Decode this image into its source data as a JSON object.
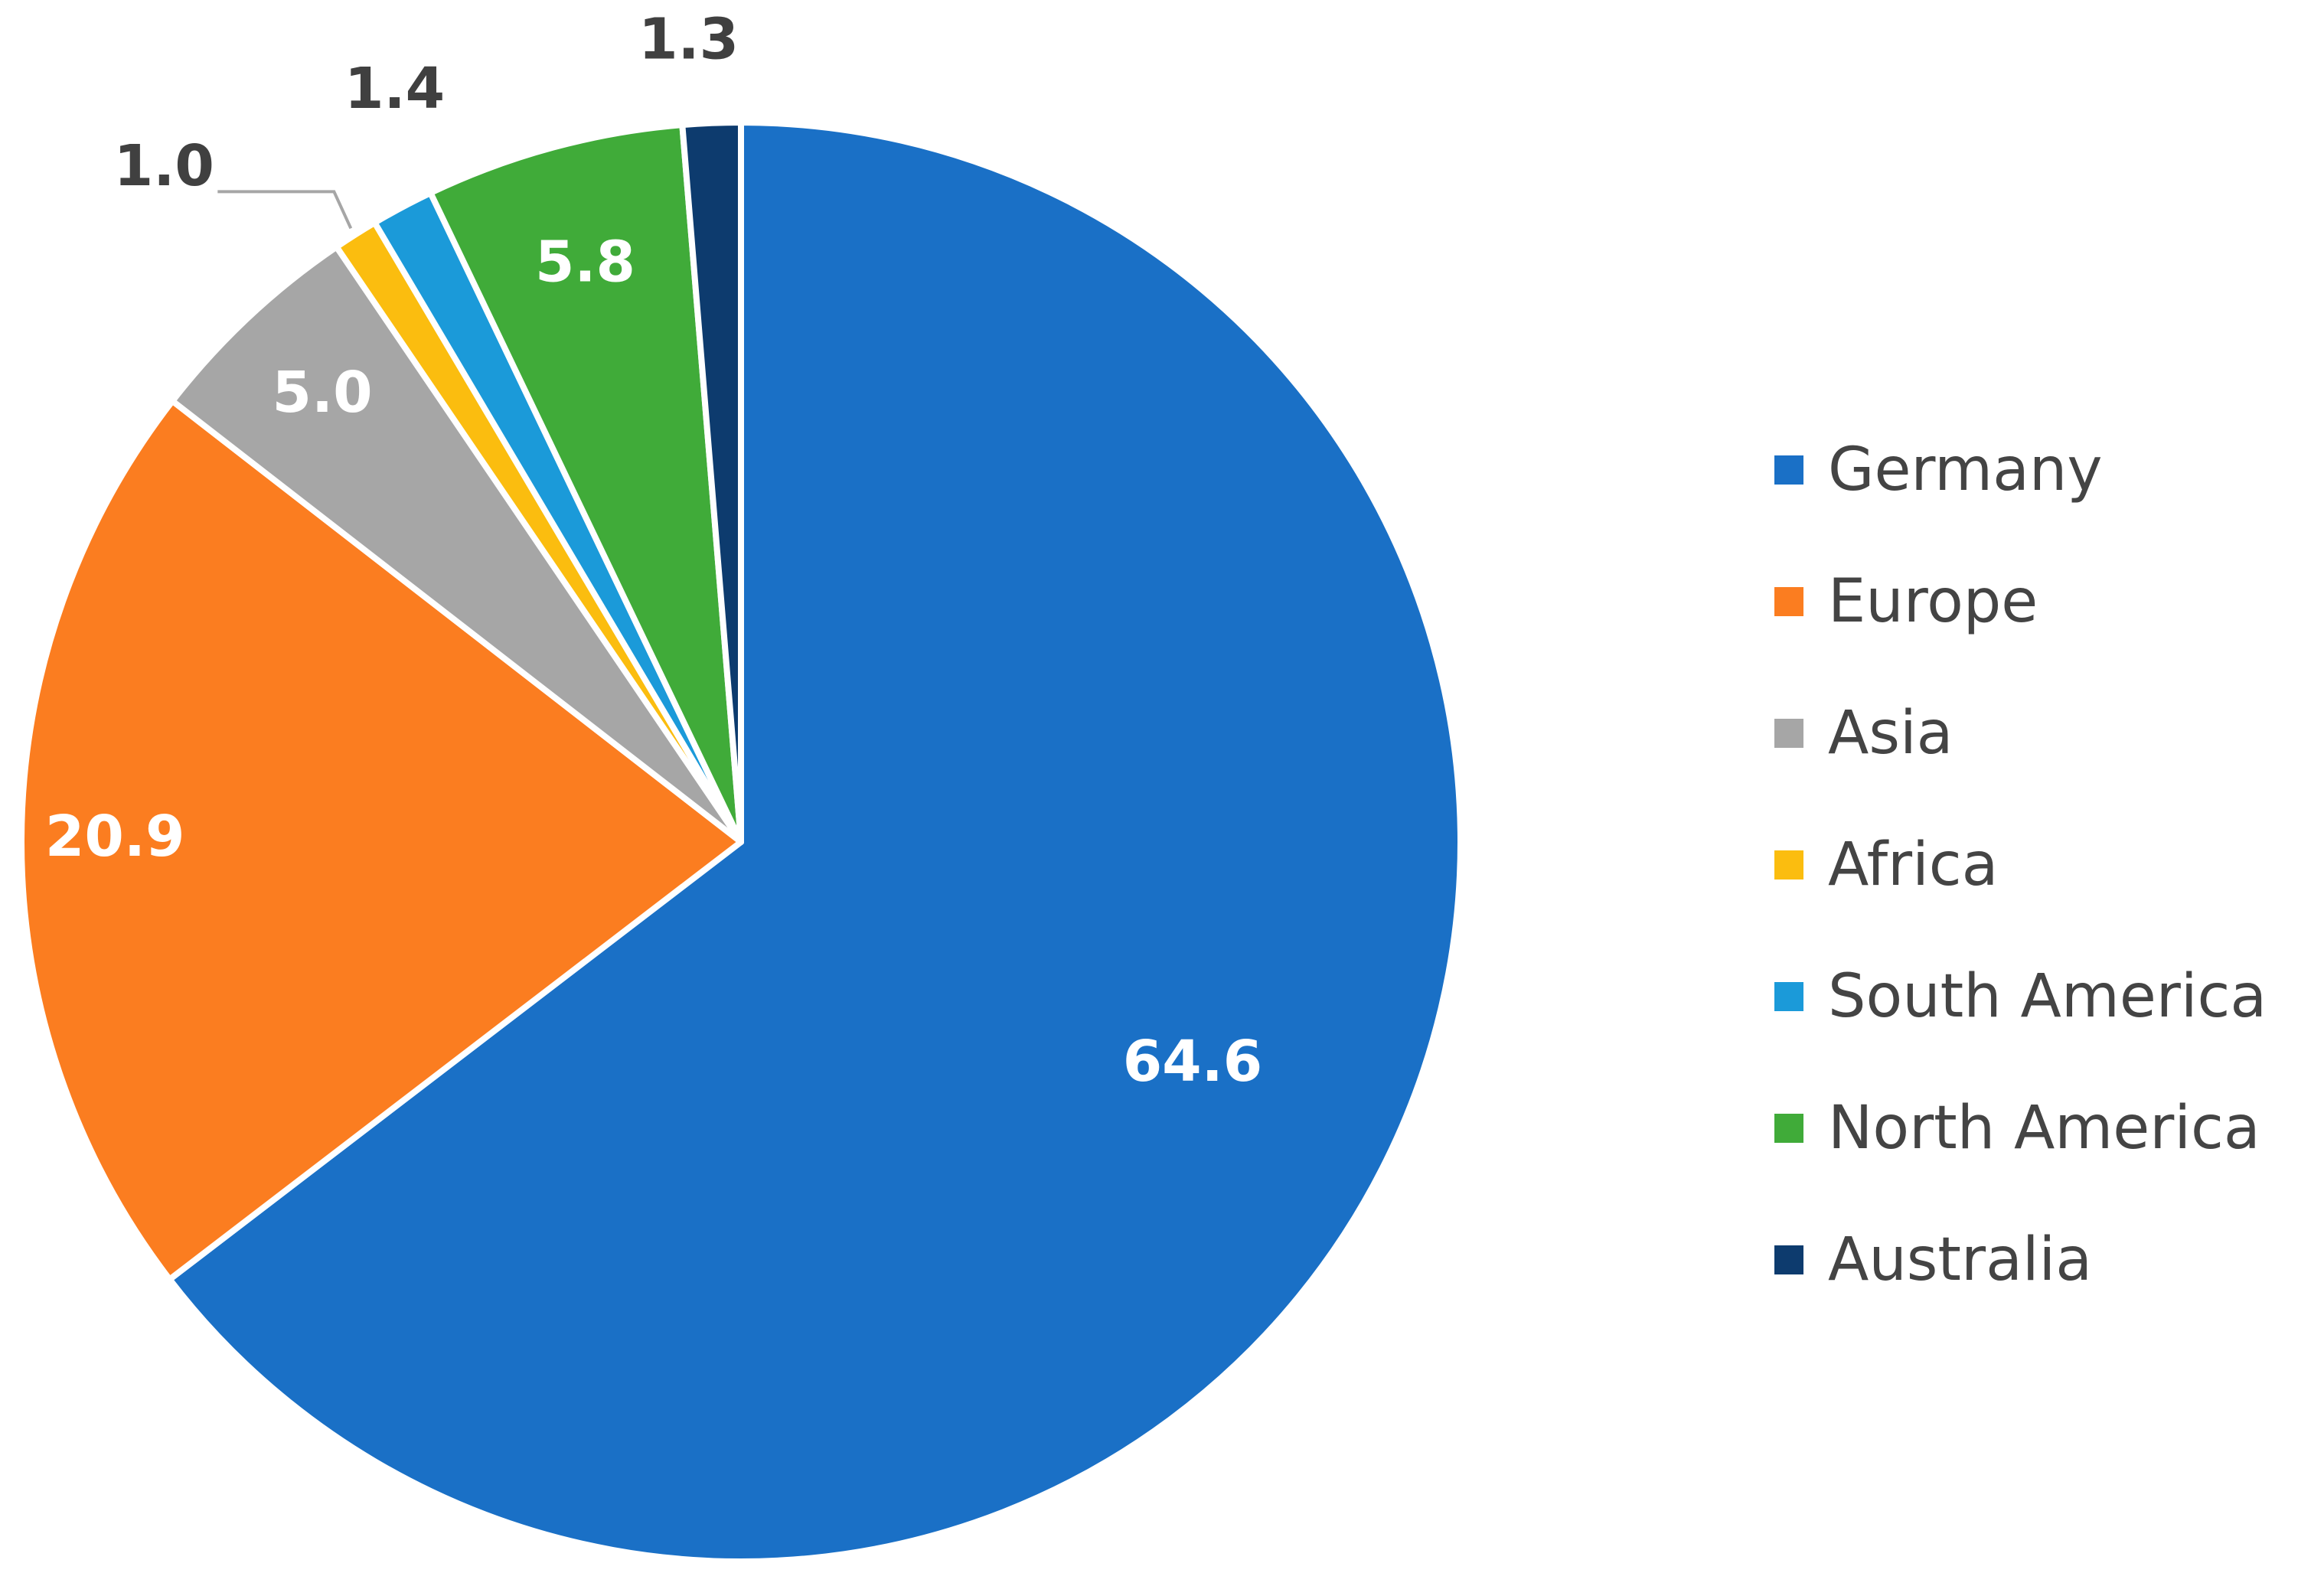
{
  "chart_data": {
    "type": "pie",
    "title": "",
    "categories": [
      "Germany",
      "Europe",
      "Asia",
      "Africa",
      "South America",
      "North America",
      "Australia"
    ],
    "values": [
      64.6,
      20.9,
      5.0,
      1.0,
      1.4,
      5.8,
      1.3
    ],
    "data_labels": [
      "64.6",
      "20.9",
      "5.0",
      "1.0",
      "1.4",
      "5.8",
      "1.3"
    ],
    "colors": [
      "#1a70c6",
      "#fb7d20",
      "#a6a6a6",
      "#fbbd0f",
      "#1b9ad9",
      "#40ab39",
      "#0d3b6e"
    ],
    "start_angle_deg": 0,
    "direction": "clockwise",
    "legend_position": "right"
  },
  "legend": {
    "items": [
      {
        "label": "Germany",
        "color": "#1a70c6"
      },
      {
        "label": "Europe",
        "color": "#fb7d20"
      },
      {
        "label": "Asia",
        "color": "#a6a6a6"
      },
      {
        "label": "Africa",
        "color": "#fbbd0f"
      },
      {
        "label": "South America",
        "color": "#1b9ad9"
      },
      {
        "label": "North America",
        "color": "#40ab39"
      },
      {
        "label": "Australia",
        "color": "#0d3b6e"
      }
    ]
  }
}
